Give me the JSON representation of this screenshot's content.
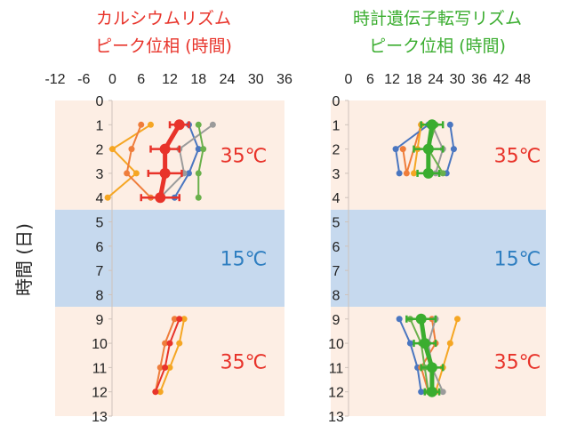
{
  "y_axis_label": "時間 (日)",
  "colors": {
    "hot_band": "#fdeee4",
    "cold_band": "#c6d9ee",
    "hot_label": "#e8332a",
    "cold_label": "#2f7fc1",
    "left_title": "#e8332a",
    "right_title": "#3aad2f"
  },
  "chart_data": [
    {
      "type": "line",
      "title_line1": "カルシウムリズム",
      "title_line2": "ピーク位相 (時間)",
      "x_ticks": [
        "-12",
        "-6",
        "0",
        "6",
        "12",
        "18",
        "24",
        "30",
        "36"
      ],
      "xlim": [
        -12,
        36
      ],
      "y_ticks": [
        "0",
        "1",
        "2",
        "3",
        "4",
        "5",
        "6",
        "7",
        "8",
        "9",
        "10",
        "11",
        "12",
        "13"
      ],
      "ylim": [
        0,
        13
      ],
      "temperature_bands": [
        {
          "from": 0,
          "to": 4.5,
          "label": "35℃",
          "kind": "hot"
        },
        {
          "from": 4.5,
          "to": 8.5,
          "label": "15℃",
          "kind": "cold"
        },
        {
          "from": 8.5,
          "to": 13,
          "label": "35℃",
          "kind": "hot"
        }
      ],
      "series": [
        {
          "color": "#f5a623",
          "points": [
            [
              8,
              1
            ],
            [
              0,
              2
            ],
            [
              5,
              3
            ],
            [
              -1,
              4
            ]
          ]
        },
        {
          "color": "#ef7d3b",
          "points": [
            [
              6,
              1
            ],
            [
              4,
              2
            ],
            [
              3,
              3
            ],
            [
              8,
              4
            ]
          ]
        },
        {
          "color": "#4a76c0",
          "points": [
            [
              16,
              1
            ],
            [
              18,
              2
            ],
            [
              16,
              3
            ],
            [
              13,
              4
            ]
          ]
        },
        {
          "color": "#9b9b9b",
          "points": [
            [
              21,
              1
            ],
            [
              14,
              2
            ],
            [
              15,
              3
            ],
            [
              10,
              4
            ]
          ]
        },
        {
          "color": "#6ab04c",
          "points": [
            [
              18,
              1
            ],
            [
              19,
              2
            ],
            [
              18,
              3
            ],
            [
              18,
              4
            ]
          ]
        },
        {
          "color": "#f5a623",
          "points": [
            [
              15,
              9
            ],
            [
              14,
              10
            ],
            [
              12,
              11
            ],
            [
              10,
              12
            ]
          ]
        },
        {
          "color": "#ef7d3b",
          "points": [
            [
              13,
              9
            ],
            [
              11,
              10
            ],
            [
              10,
              11
            ],
            [
              9,
              12
            ]
          ]
        },
        {
          "color": "#e8332a",
          "points": [
            [
              14,
              9
            ],
            [
              12,
              10
            ],
            [
              11,
              11
            ],
            [
              9,
              12
            ]
          ]
        }
      ],
      "mean_series": {
        "color": "#e8332a",
        "points": [
          [
            14,
            1
          ],
          [
            11,
            2
          ],
          [
            11,
            3
          ],
          [
            10,
            4
          ]
        ],
        "error": [
          2,
          3,
          3.5,
          4
        ]
      }
    },
    {
      "type": "line",
      "title_line1": "時計遺伝子転写リズム",
      "title_line2": "ピーク位相 (時間)",
      "x_ticks": [
        "0",
        "6",
        "12",
        "18",
        "24",
        "30",
        "36",
        "42",
        "48"
      ],
      "xlim": [
        0,
        48
      ],
      "y_ticks": [
        "0",
        "1",
        "2",
        "3",
        "4",
        "5",
        "6",
        "7",
        "8",
        "9",
        "10",
        "11",
        "12",
        "13"
      ],
      "ylim": [
        0,
        13
      ],
      "temperature_bands": [
        {
          "from": 0,
          "to": 4.5,
          "label": "35℃",
          "kind": "hot"
        },
        {
          "from": 4.5,
          "to": 8.5,
          "label": "15℃",
          "kind": "cold"
        },
        {
          "from": 8.5,
          "to": 13,
          "label": "35℃",
          "kind": "hot"
        }
      ],
      "series": [
        {
          "color": "#4a76c0",
          "points": [
            [
              28,
              1
            ],
            [
              29,
              2
            ],
            [
              27,
              3
            ]
          ]
        },
        {
          "color": "#ef7d3b",
          "points": [
            [
              15,
              2
            ],
            [
              16,
              3
            ],
            [
              20,
              1
            ]
          ]
        },
        {
          "color": "#4a76c0",
          "points": [
            [
              22,
              1
            ],
            [
              13,
              2
            ],
            [
              14,
              3
            ]
          ]
        },
        {
          "color": "#f5a623",
          "points": [
            [
              20,
              1
            ],
            [
              19,
              2
            ],
            [
              18,
              3
            ]
          ]
        },
        {
          "color": "#9b9b9b",
          "points": [
            [
              23,
              1
            ],
            [
              26,
              2
            ],
            [
              24,
              3
            ]
          ]
        },
        {
          "color": "#6ab04c",
          "points": [
            [
              24,
              1
            ],
            [
              22,
              2
            ],
            [
              26,
              3
            ]
          ]
        },
        {
          "color": "#4a76c0",
          "points": [
            [
              14,
              9
            ],
            [
              17,
              10
            ],
            [
              19,
              11
            ],
            [
              20,
              12
            ]
          ]
        },
        {
          "color": "#f5a623",
          "points": [
            [
              30,
              9
            ],
            [
              28,
              10
            ],
            [
              26,
              11
            ],
            [
              24,
              12
            ]
          ]
        },
        {
          "color": "#ef7d3b",
          "points": [
            [
              23,
              9
            ],
            [
              24,
              10
            ],
            [
              20,
              11
            ],
            [
              22,
              12
            ]
          ]
        },
        {
          "color": "#9b9b9b",
          "points": [
            [
              24,
              9
            ],
            [
              22,
              10
            ],
            [
              23,
              11
            ],
            [
              26,
              12
            ]
          ]
        },
        {
          "color": "#6ab04c",
          "points": [
            [
              17,
              9
            ],
            [
              20,
              10
            ],
            [
              21,
              11
            ],
            [
              22,
              12
            ]
          ]
        }
      ],
      "mean_series": {
        "color": "#3aad2f",
        "points": [
          [
            23,
            1
          ],
          [
            22,
            2
          ],
          [
            22,
            3
          ],
          [
            20,
            9
          ],
          [
            21,
            10
          ],
          [
            23,
            11
          ],
          [
            23,
            12
          ]
        ],
        "error": [
          3,
          4,
          3,
          4,
          3,
          3,
          2
        ]
      }
    }
  ]
}
